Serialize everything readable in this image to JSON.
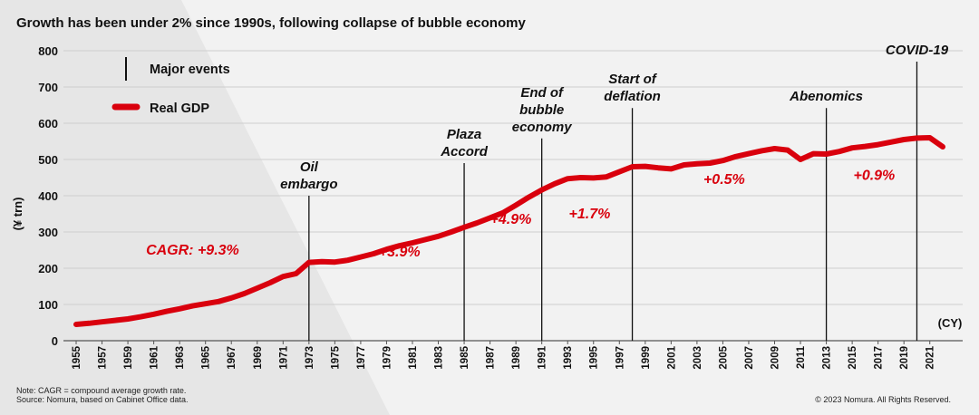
{
  "chart_data": {
    "type": "line",
    "title": "Growth has been under 2% since 1990s, following collapse of bubble economy",
    "ylabel": "(¥ trn)",
    "xlabel": "(CY)",
    "ylim": [
      0,
      800
    ],
    "xlim": [
      1955,
      2022
    ],
    "y_ticks": [
      0,
      100,
      200,
      300,
      400,
      500,
      600,
      700,
      800
    ],
    "x_ticks": [
      1955,
      1957,
      1959,
      1961,
      1963,
      1965,
      1967,
      1969,
      1971,
      1973,
      1975,
      1977,
      1979,
      1981,
      1983,
      1985,
      1987,
      1989,
      1991,
      1993,
      1995,
      1997,
      1999,
      2001,
      2003,
      2005,
      2007,
      2009,
      2011,
      2013,
      2015,
      2017,
      2019,
      2021
    ],
    "grid": "horizontal",
    "legend": {
      "placement": "top-left",
      "entries": [
        {
          "label": "Major events",
          "marker": "vertical-line",
          "color": "#111111"
        },
        {
          "label": "Real GDP",
          "marker": "line",
          "color": "#d9000d"
        }
      ]
    },
    "series": [
      {
        "name": "Real GDP",
        "color": "#d9000d",
        "x": [
          1955,
          1956,
          1957,
          1958,
          1959,
          1960,
          1961,
          1962,
          1963,
          1964,
          1965,
          1966,
          1967,
          1968,
          1969,
          1970,
          1971,
          1972,
          1973,
          1974,
          1975,
          1976,
          1977,
          1978,
          1979,
          1980,
          1981,
          1982,
          1983,
          1984,
          1985,
          1986,
          1987,
          1988,
          1989,
          1990,
          1991,
          1992,
          1993,
          1994,
          1995,
          1996,
          1997,
          1998,
          1999,
          2000,
          2001,
          2002,
          2003,
          2004,
          2005,
          2006,
          2007,
          2008,
          2009,
          2010,
          2011,
          2012,
          2013,
          2014,
          2015,
          2016,
          2017,
          2018,
          2019,
          2020,
          2021,
          2022
        ],
        "y": [
          45,
          48,
          52,
          56,
          60,
          66,
          73,
          81,
          88,
          96,
          102,
          108,
          118,
          130,
          145,
          160,
          177,
          185,
          216,
          218,
          217,
          222,
          231,
          240,
          252,
          262,
          270,
          279,
          288,
          300,
          313,
          325,
          339,
          353,
          374,
          396,
          416,
          433,
          447,
          450,
          449,
          452,
          466,
          480,
          481,
          477,
          474,
          485,
          488,
          490,
          497,
          508,
          516,
          524,
          530,
          526,
          500,
          516,
          515,
          522,
          532,
          536,
          541,
          548,
          555,
          559,
          560,
          535
        ]
      }
    ],
    "events": [
      {
        "year": 1973,
        "label_lines": [
          "Oil",
          "embargo"
        ],
        "top": 400
      },
      {
        "year": 1985,
        "label_lines": [
          "Plaza",
          "Accord"
        ],
        "top": 490
      },
      {
        "year": 1991,
        "label_lines": [
          "End of",
          "bubble",
          "economy"
        ],
        "top": 558
      },
      {
        "year": 1998,
        "label_lines": [
          "Start of",
          "deflation"
        ],
        "top": 642
      },
      {
        "year": 2013,
        "label_lines": [
          "Abenomics"
        ],
        "top": 642
      },
      {
        "year": 2020,
        "label_lines": [
          "COVID-19"
        ],
        "top": 770
      }
    ],
    "annotations": [
      {
        "text": "CAGR: +9.3%",
        "x": 1964,
        "y": 237
      },
      {
        "text": "+3.9%",
        "x": 1980,
        "y": 233
      },
      {
        "text": "+4.9%",
        "x": 1988.6,
        "y": 322
      },
      {
        "text": "+1.7%",
        "x": 1994.7,
        "y": 338
      },
      {
        "text": "+0.5%",
        "x": 2005.1,
        "y": 432
      },
      {
        "text": "+0.9%",
        "x": 2016.7,
        "y": 444
      }
    ]
  },
  "notes": {
    "line1": "Note: CAGR = compound average growth rate.",
    "line2": "Source: Nomura, based on Cabinet Office data.",
    "copyright": "© 2023 Nomura. All Rights Reserved."
  }
}
